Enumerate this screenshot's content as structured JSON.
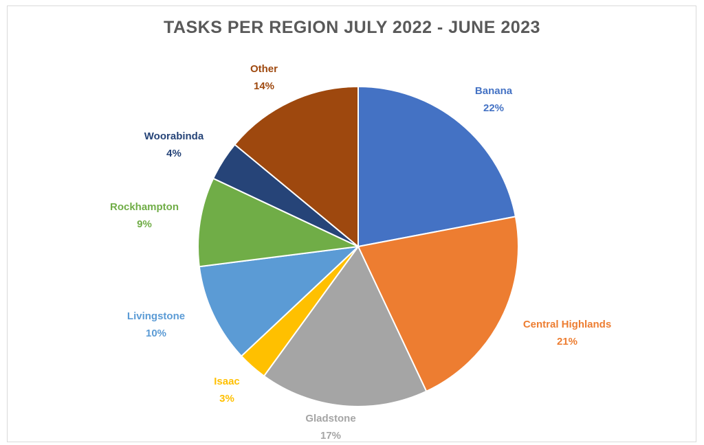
{
  "chart_data": {
    "type": "pie",
    "title": "TASKS PER REGION JULY 2022 - JUNE 2023",
    "slices": [
      {
        "label": "Banana",
        "percent_label": "22%",
        "value": 22,
        "color": "#4472C4"
      },
      {
        "label": "Central Highlands",
        "percent_label": "21%",
        "value": 21,
        "color": "#ED7D31"
      },
      {
        "label": "Gladstone",
        "percent_label": "17%",
        "value": 17,
        "color": "#A5A5A5"
      },
      {
        "label": "Isaac",
        "percent_label": "3%",
        "value": 3,
        "color": "#FFC000"
      },
      {
        "label": "Livingstone",
        "percent_label": "10%",
        "value": 10,
        "color": "#5B9BD5"
      },
      {
        "label": "Rockhampton",
        "percent_label": "9%",
        "value": 9,
        "color": "#70AD47"
      },
      {
        "label": "Woorabinda",
        "percent_label": "4%",
        "value": 4,
        "color": "#264478"
      },
      {
        "label": "Other",
        "percent_label": "14%",
        "value": 14,
        "color": "#9E480E"
      }
    ],
    "start_angle_deg": 0,
    "direction": "clockwise",
    "legend": "none",
    "data_labels": "outside"
  }
}
